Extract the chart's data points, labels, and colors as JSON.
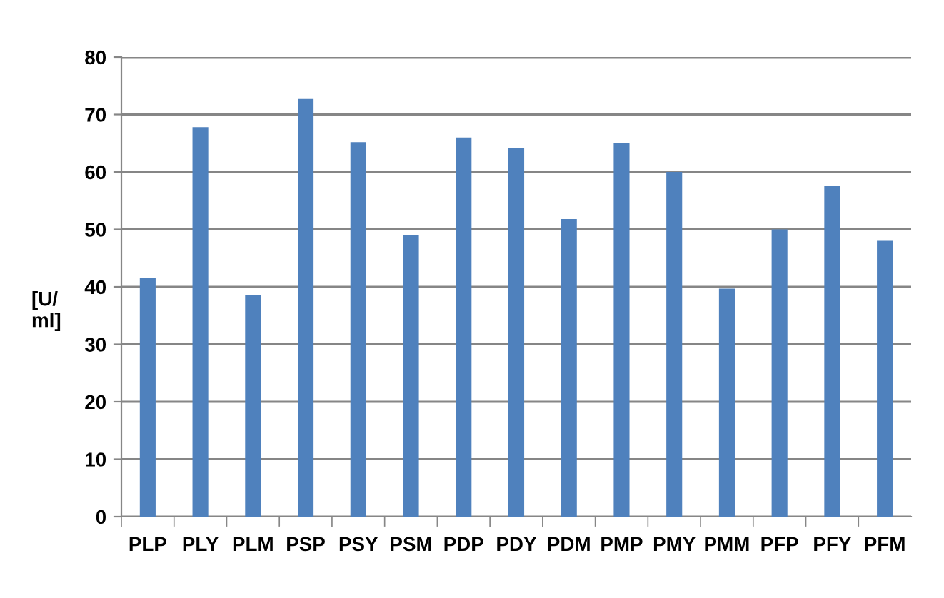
{
  "chart_data": {
    "type": "bar",
    "ylabel": "[U/\nml]",
    "categories": [
      "PLP",
      "PLY",
      "PLM",
      "PSP",
      "PSY",
      "PSM",
      "PDP",
      "PDY",
      "PDM",
      "PMP",
      "PMY",
      "PMM",
      "PFP",
      "PFY",
      "PFM"
    ],
    "values": [
      41.5,
      67.8,
      38.5,
      72.7,
      65.2,
      49,
      66,
      64.2,
      51.8,
      65,
      60,
      39.7,
      50,
      57.5,
      48
    ],
    "color": "#4f81bd",
    "ylim": [
      0,
      80
    ],
    "yticks": [
      0,
      10,
      20,
      30,
      40,
      50,
      60,
      70,
      80
    ],
    "grid": "y",
    "legend": false
  }
}
